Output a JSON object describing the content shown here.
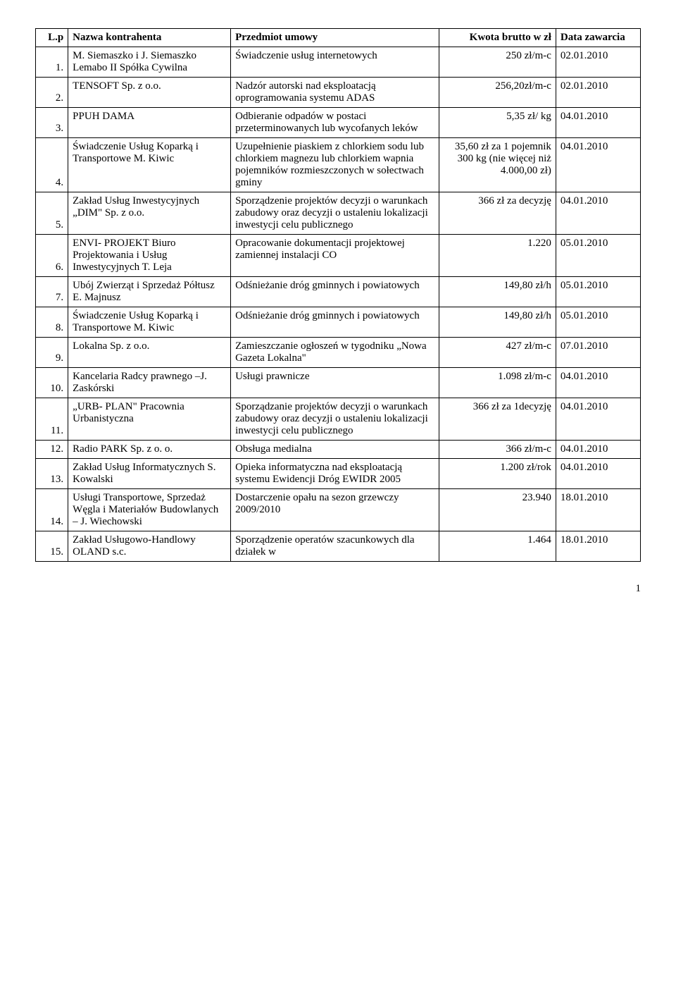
{
  "headers": {
    "lp": "L.p",
    "name": "Nazwa kontrahenta",
    "subject": "Przedmiot umowy",
    "amount": "Kwota brutto w zł",
    "date": "Data zawarcia"
  },
  "rows": [
    {
      "lp": "1.",
      "name": "M. Siemaszko i J. Siemaszko Lemabo II Spółka Cywilna",
      "subject": "Świadczenie usług internetowych",
      "amount": "250 zł/m-c",
      "date": "02.01.2010"
    },
    {
      "lp": "2.",
      "name": "TENSOFT Sp. z o.o.",
      "subject": "Nadzór autorski nad eksploatacją oprogramowania systemu ADAS",
      "amount": "256,20zł/m-c",
      "date": "02.01.2010"
    },
    {
      "lp": "3.",
      "name": "PPUH DAMA",
      "subject": "Odbieranie odpadów w postaci przeterminowanych lub wycofanych leków",
      "amount": "5,35 zł/ kg",
      "date": "04.01.2010"
    },
    {
      "lp": "4.",
      "name": "Świadczenie Usług Koparką i Transportowe M. Kiwic",
      "subject": "Uzupełnienie piaskiem z chlorkiem sodu lub chlorkiem magnezu lub chlorkiem wapnia pojemników rozmieszczonych w sołectwach gminy",
      "amount": "35,60 zł za 1 pojemnik 300 kg (nie więcej niż 4.000,00 zł)",
      "date": "04.01.2010"
    },
    {
      "lp": "5.",
      "name": "Zakład Usług Inwestycyjnych „DIM\" Sp. z o.o.",
      "subject": "Sporządzenie projektów decyzji o warunkach zabudowy oraz decyzji o ustaleniu lokalizacji inwestycji celu publicznego",
      "amount": "366 zł za decyzję",
      "date": "04.01.2010"
    },
    {
      "lp": "6.",
      "name": "ENVI- PROJEKT Biuro Projektowania i Usług Inwestycyjnych T. Leja",
      "subject": "Opracowanie dokumentacji projektowej zamiennej instalacji CO",
      "amount": "1.220",
      "date": "05.01.2010"
    },
    {
      "lp": "7.",
      "name": "Ubój Zwierząt i Sprzedaż Półtusz E. Majnusz",
      "subject": "Odśnieżanie dróg gminnych i powiatowych",
      "amount": "149,80 zł/h",
      "date": "05.01.2010"
    },
    {
      "lp": "8.",
      "name": "Świadczenie Usług Koparką i Transportowe M. Kiwic",
      "subject": "Odśnieżanie dróg gminnych i powiatowych",
      "amount": "149,80 zł/h",
      "date": "05.01.2010"
    },
    {
      "lp": "9.",
      "name": "Lokalna Sp. z o.o.",
      "subject": "Zamieszczanie ogłoszeń w tygodniku „Nowa Gazeta Lokalna\"",
      "amount": "427 zł/m-c",
      "date": "07.01.2010"
    },
    {
      "lp": "10.",
      "name": "Kancelaria Radcy prawnego –J. Zaskórski",
      "subject": "Usługi prawnicze",
      "amount": "1.098 zł/m-c",
      "date": "04.01.2010"
    },
    {
      "lp": "11.",
      "name": "„URB- PLAN\" Pracownia Urbanistyczna",
      "subject": "Sporządzanie projektów decyzji o warunkach zabudowy oraz decyzji o ustaleniu lokalizacji inwestycji celu publicznego",
      "amount": "366 zł za 1decyzję",
      "date": "04.01.2010"
    },
    {
      "lp": "12.",
      "name": "Radio PARK Sp. z o. o.",
      "subject": "Obsługa medialna",
      "amount": "366 zł/m-c",
      "date": "04.01.2010"
    },
    {
      "lp": "13.",
      "name": "Zakład Usług Informatycznych S. Kowalski",
      "subject": "Opieka informatyczna nad eksploatacją systemu Ewidencji Dróg EWIDR 2005",
      "amount": "1.200 zł/rok",
      "date": "04.01.2010"
    },
    {
      "lp": "14.",
      "name": "Usługi Transportowe, Sprzedaż Węgla i Materiałów Budowlanych – J. Wiechowski",
      "subject": "Dostarczenie opału na sezon grzewczy 2009/2010",
      "amount": "23.940",
      "date": "18.01.2010"
    },
    {
      "lp": "15.",
      "name": "Zakład Usługowo-Handlowy OLAND s.c.",
      "subject": "Sporządzenie operatów szacunkowych dla działek w",
      "amount": "1.464",
      "date": "18.01.2010"
    }
  ],
  "pageNumber": "1"
}
